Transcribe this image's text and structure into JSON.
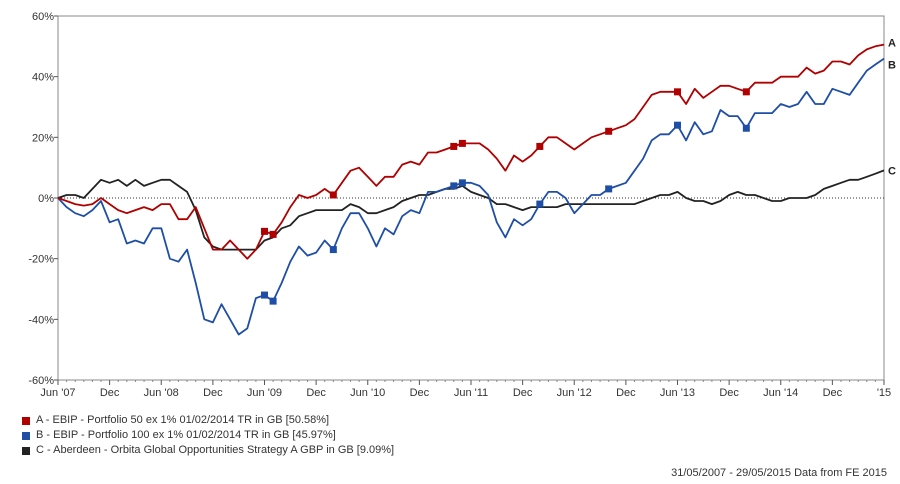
{
  "chart_data": {
    "type": "line",
    "ylim": [
      -60,
      60
    ],
    "y_ticks": [
      "60%",
      "40%",
      "20%",
      "0%",
      "-20%",
      "-40%",
      "-60%"
    ],
    "y_tick_values": [
      60,
      40,
      20,
      0,
      -20,
      -40,
      -60
    ],
    "x_ticks": [
      "Jun '07",
      "Dec",
      "Jun '08",
      "Dec",
      "Jun '09",
      "Dec",
      "Jun '10",
      "Dec",
      "Jun '11",
      "Dec",
      "Jun '12",
      "Dec",
      "Jun '13",
      "Dec",
      "Jun '14",
      "Dec",
      "'15"
    ],
    "x_tick_months": [
      0,
      6,
      12,
      18,
      24,
      30,
      36,
      42,
      48,
      54,
      60,
      66,
      72,
      78,
      84,
      90,
      96
    ],
    "x_range_months": [
      0,
      96
    ],
    "grid": false,
    "zero_line": "dotted",
    "series": [
      {
        "name": "A - EBIP - Portfolio 50 ex 1% 01/02/2014 TR in GB [50.58%]",
        "end_label": "A",
        "color": "#b00000",
        "markers_at_months": [
          24,
          25,
          32,
          46,
          47,
          56,
          64,
          72,
          80
        ],
        "values": [
          [
            0,
            0
          ],
          [
            1,
            -1
          ],
          [
            2,
            -2
          ],
          [
            3,
            -2.5
          ],
          [
            4,
            -2
          ],
          [
            5,
            0
          ],
          [
            6,
            -2
          ],
          [
            7,
            -4
          ],
          [
            8,
            -5
          ],
          [
            9,
            -4
          ],
          [
            10,
            -3
          ],
          [
            11,
            -4
          ],
          [
            12,
            -2
          ],
          [
            13,
            -2
          ],
          [
            14,
            -7
          ],
          [
            15,
            -7
          ],
          [
            16,
            -3
          ],
          [
            17,
            -10
          ],
          [
            18,
            -17
          ],
          [
            19,
            -17
          ],
          [
            20,
            -14
          ],
          [
            21,
            -17
          ],
          [
            22,
            -20
          ],
          [
            23,
            -17
          ],
          [
            24,
            -11
          ],
          [
            25,
            -12
          ],
          [
            26,
            -8
          ],
          [
            27,
            -3
          ],
          [
            28,
            1
          ],
          [
            29,
            0
          ],
          [
            30,
            1
          ],
          [
            31,
            3
          ],
          [
            32,
            1
          ],
          [
            33,
            5
          ],
          [
            34,
            9
          ],
          [
            35,
            10
          ],
          [
            36,
            7
          ],
          [
            37,
            4
          ],
          [
            38,
            7
          ],
          [
            39,
            7
          ],
          [
            40,
            11
          ],
          [
            41,
            12
          ],
          [
            42,
            11
          ],
          [
            43,
            15
          ],
          [
            44,
            15
          ],
          [
            45,
            16
          ],
          [
            46,
            17
          ],
          [
            47,
            18
          ],
          [
            48,
            18
          ],
          [
            49,
            18
          ],
          [
            50,
            16
          ],
          [
            51,
            13
          ],
          [
            52,
            9
          ],
          [
            53,
            14
          ],
          [
            54,
            12
          ],
          [
            55,
            14
          ],
          [
            56,
            17
          ],
          [
            57,
            20
          ],
          [
            58,
            20
          ],
          [
            59,
            18
          ],
          [
            60,
            16
          ],
          [
            61,
            18
          ],
          [
            62,
            20
          ],
          [
            63,
            21
          ],
          [
            64,
            22
          ],
          [
            65,
            23
          ],
          [
            66,
            24
          ],
          [
            67,
            26
          ],
          [
            68,
            30
          ],
          [
            69,
            34
          ],
          [
            70,
            35
          ],
          [
            71,
            35
          ],
          [
            72,
            35
          ],
          [
            73,
            31
          ],
          [
            74,
            36
          ],
          [
            75,
            33
          ],
          [
            76,
            35
          ],
          [
            77,
            37
          ],
          [
            78,
            37
          ],
          [
            79,
            36
          ],
          [
            80,
            35
          ],
          [
            81,
            38
          ],
          [
            82,
            38
          ],
          [
            83,
            38
          ],
          [
            84,
            40
          ],
          [
            85,
            40
          ],
          [
            86,
            40
          ],
          [
            87,
            43
          ],
          [
            88,
            41
          ],
          [
            89,
            42
          ],
          [
            90,
            45
          ],
          [
            91,
            45
          ],
          [
            92,
            44
          ],
          [
            93,
            47
          ],
          [
            94,
            49
          ],
          [
            95,
            50
          ],
          [
            96,
            50.58
          ]
        ]
      },
      {
        "name": "B - EBIP - Portfolio 100 ex 1% 01/02/2014 TR in GB [45.97%]",
        "end_label": "B",
        "color": "#1f4ea6",
        "markers_at_months": [
          24,
          25,
          32,
          46,
          47,
          56,
          64,
          72,
          80
        ],
        "values": [
          [
            0,
            0
          ],
          [
            1,
            -3
          ],
          [
            2,
            -5
          ],
          [
            3,
            -6
          ],
          [
            4,
            -4
          ],
          [
            5,
            -1
          ],
          [
            6,
            -8
          ],
          [
            7,
            -7
          ],
          [
            8,
            -15
          ],
          [
            9,
            -14
          ],
          [
            10,
            -15
          ],
          [
            11,
            -10
          ],
          [
            12,
            -10
          ],
          [
            13,
            -20
          ],
          [
            14,
            -21
          ],
          [
            15,
            -17
          ],
          [
            16,
            -28
          ],
          [
            17,
            -40
          ],
          [
            18,
            -41
          ],
          [
            19,
            -35
          ],
          [
            20,
            -40
          ],
          [
            21,
            -45
          ],
          [
            22,
            -43
          ],
          [
            23,
            -33
          ],
          [
            24,
            -32
          ],
          [
            25,
            -34
          ],
          [
            26,
            -28
          ],
          [
            27,
            -21
          ],
          [
            28,
            -16
          ],
          [
            29,
            -19
          ],
          [
            30,
            -18
          ],
          [
            31,
            -14
          ],
          [
            32,
            -17
          ],
          [
            33,
            -10
          ],
          [
            34,
            -5
          ],
          [
            35,
            -5
          ],
          [
            36,
            -10
          ],
          [
            37,
            -16
          ],
          [
            38,
            -10
          ],
          [
            39,
            -12
          ],
          [
            40,
            -6
          ],
          [
            41,
            -4
          ],
          [
            42,
            -5
          ],
          [
            43,
            2
          ],
          [
            44,
            2
          ],
          [
            45,
            3
          ],
          [
            46,
            4
          ],
          [
            47,
            5
          ],
          [
            48,
            5
          ],
          [
            49,
            4
          ],
          [
            50,
            1
          ],
          [
            51,
            -8
          ],
          [
            52,
            -13
          ],
          [
            53,
            -7
          ],
          [
            54,
            -9
          ],
          [
            55,
            -7
          ],
          [
            56,
            -2
          ],
          [
            57,
            2
          ],
          [
            58,
            2
          ],
          [
            59,
            0
          ],
          [
            60,
            -5
          ],
          [
            61,
            -2
          ],
          [
            62,
            1
          ],
          [
            63,
            1
          ],
          [
            64,
            3
          ],
          [
            65,
            4
          ],
          [
            66,
            5
          ],
          [
            67,
            9
          ],
          [
            68,
            13
          ],
          [
            69,
            19
          ],
          [
            70,
            21
          ],
          [
            71,
            21
          ],
          [
            72,
            24
          ],
          [
            73,
            19
          ],
          [
            74,
            25
          ],
          [
            75,
            21
          ],
          [
            76,
            22
          ],
          [
            77,
            29
          ],
          [
            78,
            27
          ],
          [
            79,
            27
          ],
          [
            80,
            23
          ],
          [
            81,
            28
          ],
          [
            82,
            28
          ],
          [
            83,
            28
          ],
          [
            84,
            31
          ],
          [
            85,
            30
          ],
          [
            86,
            31
          ],
          [
            87,
            35
          ],
          [
            88,
            31
          ],
          [
            89,
            31
          ],
          [
            90,
            36
          ],
          [
            91,
            35
          ],
          [
            92,
            34
          ],
          [
            93,
            38
          ],
          [
            94,
            42
          ],
          [
            95,
            44
          ],
          [
            96,
            45.97
          ]
        ]
      },
      {
        "name": "C - Aberdeen - Orbita Global Opportunities Strategy A GBP in GB [9.09%]",
        "end_label": "C",
        "color": "#222222",
        "markers_at_months": [],
        "values": [
          [
            0,
            0
          ],
          [
            1,
            1
          ],
          [
            2,
            1
          ],
          [
            3,
            0
          ],
          [
            4,
            3
          ],
          [
            5,
            6
          ],
          [
            6,
            5
          ],
          [
            7,
            6
          ],
          [
            8,
            4
          ],
          [
            9,
            6
          ],
          [
            10,
            4
          ],
          [
            11,
            5
          ],
          [
            12,
            6
          ],
          [
            13,
            6
          ],
          [
            14,
            4
          ],
          [
            15,
            2
          ],
          [
            16,
            -4
          ],
          [
            17,
            -13
          ],
          [
            18,
            -16
          ],
          [
            19,
            -17
          ],
          [
            20,
            -17
          ],
          [
            21,
            -17
          ],
          [
            22,
            -17
          ],
          [
            23,
            -17
          ],
          [
            24,
            -14
          ],
          [
            25,
            -13
          ],
          [
            26,
            -10
          ],
          [
            27,
            -9
          ],
          [
            28,
            -6
          ],
          [
            29,
            -5
          ],
          [
            30,
            -4
          ],
          [
            31,
            -4
          ],
          [
            32,
            -4
          ],
          [
            33,
            -4
          ],
          [
            34,
            -2
          ],
          [
            35,
            -3
          ],
          [
            36,
            -5
          ],
          [
            37,
            -5
          ],
          [
            38,
            -4
          ],
          [
            39,
            -3
          ],
          [
            40,
            -1
          ],
          [
            41,
            0
          ],
          [
            42,
            1
          ],
          [
            43,
            1
          ],
          [
            44,
            2
          ],
          [
            45,
            3
          ],
          [
            46,
            3
          ],
          [
            47,
            4
          ],
          [
            48,
            2
          ],
          [
            49,
            1
          ],
          [
            50,
            0
          ],
          [
            51,
            -2
          ],
          [
            52,
            -2
          ],
          [
            53,
            -3
          ],
          [
            54,
            -4
          ],
          [
            55,
            -3
          ],
          [
            56,
            -3
          ],
          [
            57,
            -3
          ],
          [
            58,
            -3
          ],
          [
            59,
            -2
          ],
          [
            60,
            -2
          ],
          [
            61,
            -2
          ],
          [
            62,
            -2
          ],
          [
            63,
            -2
          ],
          [
            64,
            -2
          ],
          [
            65,
            -2
          ],
          [
            66,
            -2
          ],
          [
            67,
            -2
          ],
          [
            68,
            -1
          ],
          [
            69,
            0
          ],
          [
            70,
            1
          ],
          [
            71,
            1
          ],
          [
            72,
            2
          ],
          [
            73,
            0
          ],
          [
            74,
            -1
          ],
          [
            75,
            -1
          ],
          [
            76,
            -2
          ],
          [
            77,
            -1
          ],
          [
            78,
            1
          ],
          [
            79,
            2
          ],
          [
            80,
            1
          ],
          [
            81,
            1
          ],
          [
            82,
            0
          ],
          [
            83,
            -1
          ],
          [
            84,
            -1
          ],
          [
            85,
            0
          ],
          [
            86,
            0
          ],
          [
            87,
            0
          ],
          [
            88,
            1
          ],
          [
            89,
            3
          ],
          [
            90,
            4
          ],
          [
            91,
            5
          ],
          [
            92,
            6
          ],
          [
            93,
            6
          ],
          [
            94,
            7
          ],
          [
            95,
            8
          ],
          [
            96,
            9.09
          ]
        ]
      }
    ]
  },
  "legend": [
    {
      "label": "A - EBIP - Portfolio 50 ex 1% 01/02/2014 TR in GB [50.58%]",
      "color": "#b00000"
    },
    {
      "label": "B - EBIP - Portfolio 100 ex 1% 01/02/2014 TR in GB [45.97%]",
      "color": "#1f4ea6"
    },
    {
      "label": "C - Aberdeen - Orbita Global Opportunities Strategy A GBP in GB [9.09%]",
      "color": "#222222"
    }
  ],
  "footer": "31/05/2007 - 29/05/2015 Data from FE 2015"
}
